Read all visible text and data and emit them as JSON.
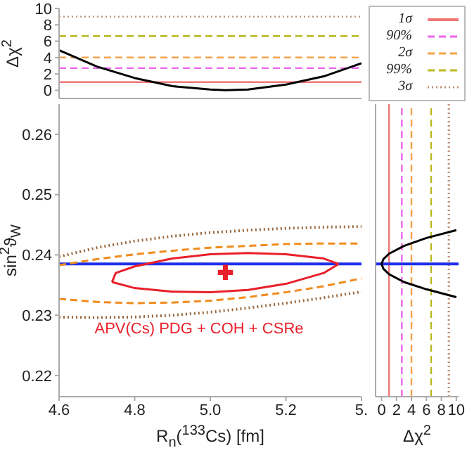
{
  "chart_data": [
    {
      "type": "line",
      "ylabel": "Δχ$^{2}$",
      "xlim": [
        4.6,
        5.4
      ],
      "xticks": [
        4.6,
        4.8,
        5,
        5.2,
        5.4
      ],
      "ylim": [
        -1,
        10
      ],
      "yticks": [
        0,
        2,
        4,
        6,
        8,
        10
      ],
      "tick_labels": "y",
      "legend": "right",
      "series": [
        {
          "name": "1σ",
          "color": "#f07878",
          "line_style": "solid",
          "x": [
            4.6,
            5.4
          ],
          "values": [
            1,
            1
          ]
        },
        {
          "name": "90%",
          "color": "#ee66ee",
          "line_style": "dashed",
          "x": [
            4.6,
            5.4
          ],
          "values": [
            2.71,
            2.71
          ]
        },
        {
          "name": "2σ",
          "color": "#f5a24a",
          "line_style": "dashed",
          "x": [
            4.6,
            5.4
          ],
          "values": [
            4,
            4
          ]
        },
        {
          "name": "99%",
          "color": "#b8b820",
          "line_style": "dashed",
          "x": [
            4.6,
            5.4
          ],
          "values": [
            6.63,
            6.63
          ]
        },
        {
          "name": "3σ",
          "color": "#c09070",
          "line_style": "dotted",
          "x": [
            4.6,
            5.4
          ],
          "values": [
            9,
            9
          ]
        },
        {
          "color": "#000000",
          "x": [
            4.6,
            4.7,
            4.8,
            4.9,
            5.0,
            5.04,
            5.1,
            5.2,
            5.3,
            5.4
          ],
          "values": [
            4.9,
            2.9,
            1.5,
            0.5,
            0.1,
            0,
            0.1,
            0.7,
            1.7,
            3.3
          ]
        }
      ]
    },
    {
      "type": "line",
      "xlabel": "R$_{n}$($^{133}$Cs) [fm]",
      "ylabel": "sin$^{2}$ϑ$_{W}$",
      "xlim": [
        4.6,
        5.4
      ],
      "xticks": [
        4.6,
        4.8,
        {
          "value": 5,
          "label": "5.0"
        },
        5.2,
        {
          "value": 5.4,
          "label": "5."
        }
      ],
      "ylim": [
        0.2165,
        0.265
      ],
      "yticks": [
        0.22,
        0.23,
        0.24,
        0.25,
        0.26
      ],
      "series": [
        {
          "color": "#e8202a",
          "x": [
            4.74,
            4.8,
            4.9,
            5.0,
            5.1,
            5.2,
            5.3,
            5.34
          ],
          "values": [
            0.2355,
            0.2345,
            0.2339,
            0.2338,
            0.2342,
            0.2352,
            0.237,
            0.2385
          ]
        },
        {
          "color": "#e8202a",
          "x": [
            4.74,
            4.75,
            4.8,
            4.9,
            5.0,
            5.1,
            5.2,
            5.3,
            5.34
          ],
          "values": [
            0.2355,
            0.237,
            0.2381,
            0.2394,
            0.2401,
            0.2403,
            0.2401,
            0.2394,
            0.2385
          ]
        },
        {
          "color": "#f08c1e",
          "line_style": "dashed",
          "x": [
            4.6,
            4.7,
            4.8,
            4.9,
            5.0,
            5.1,
            5.2,
            5.3,
            5.4
          ],
          "values": [
            0.2383,
            0.2393,
            0.2401,
            0.2407,
            0.2412,
            0.2415,
            0.2418,
            0.2419,
            0.2419
          ]
        },
        {
          "color": "#f08c1e",
          "line_style": "dashed",
          "x": [
            4.6,
            4.7,
            4.8,
            4.9,
            5.0,
            5.1,
            5.2,
            5.3,
            5.4
          ],
          "values": [
            0.2327,
            0.2322,
            0.232,
            0.2321,
            0.2324,
            0.233,
            0.2338,
            0.2348,
            0.2361
          ]
        },
        {
          "color": "#9a6a40",
          "line_style": "dotted",
          "x": [
            4.6,
            4.7,
            4.8,
            4.9,
            5.0,
            5.1,
            5.2,
            5.3,
            5.4
          ],
          "values": [
            0.2397,
            0.2412,
            0.2423,
            0.2431,
            0.2437,
            0.2441,
            0.2444,
            0.2446,
            0.2447
          ]
        },
        {
          "color": "#9a6a40",
          "line_style": "dotted",
          "x": [
            4.6,
            4.7,
            4.8,
            4.9,
            5.0,
            5.1,
            5.2,
            5.3,
            5.4
          ],
          "values": [
            0.2297,
            0.2296,
            0.2297,
            0.23,
            0.2305,
            0.2312,
            0.232,
            0.2329,
            0.2339
          ]
        },
        {
          "type": "scatter",
          "marker": "cross",
          "color": "#e8202a",
          "x": [
            5.04
          ],
          "values": [
            0.2371
          ]
        }
      ],
      "ref_lines": [
        {
          "axis": "y",
          "value": 0.2385,
          "color": "#2030e8",
          "line_style": "solid"
        }
      ],
      "annotations": [
        "APV(Cs) PDG + COH + CSRe"
      ]
    },
    {
      "type": "line",
      "xlabel": "Δχ$^{2}$",
      "xlim": [
        -0.8,
        10.3
      ],
      "xticks": [
        0,
        2,
        4,
        6,
        8,
        10
      ],
      "ylim": [
        0.2165,
        0.265
      ],
      "yticks": [
        0.22,
        0.23,
        0.24,
        0.25,
        0.26
      ],
      "tick_labels": "x",
      "series": [
        {
          "color": "#000000",
          "x": [
            10,
            6,
            3,
            1,
            0.25,
            0,
            0.25,
            1,
            3,
            6,
            10
          ],
          "values": [
            0.2441,
            0.2428,
            0.2415,
            0.2402,
            0.2393,
            0.2385,
            0.2377,
            0.2368,
            0.2355,
            0.2343,
            0.233
          ]
        }
      ],
      "ref_lines": [
        {
          "axis": "x",
          "value": 1,
          "color": "#f07878",
          "line_style": "solid"
        },
        {
          "axis": "x",
          "value": 2.71,
          "color": "#ee66ee",
          "line_style": "dashed"
        },
        {
          "axis": "x",
          "value": 4,
          "color": "#f5a24a",
          "line_style": "dashed"
        },
        {
          "axis": "x",
          "value": 6.63,
          "color": "#b8b820",
          "line_style": "dashed"
        },
        {
          "axis": "x",
          "value": 9,
          "color": "#c09070",
          "line_style": "dotted"
        },
        {
          "axis": "y",
          "value": 0.2385,
          "color": "#2030e8",
          "line_style": "solid"
        }
      ]
    }
  ]
}
